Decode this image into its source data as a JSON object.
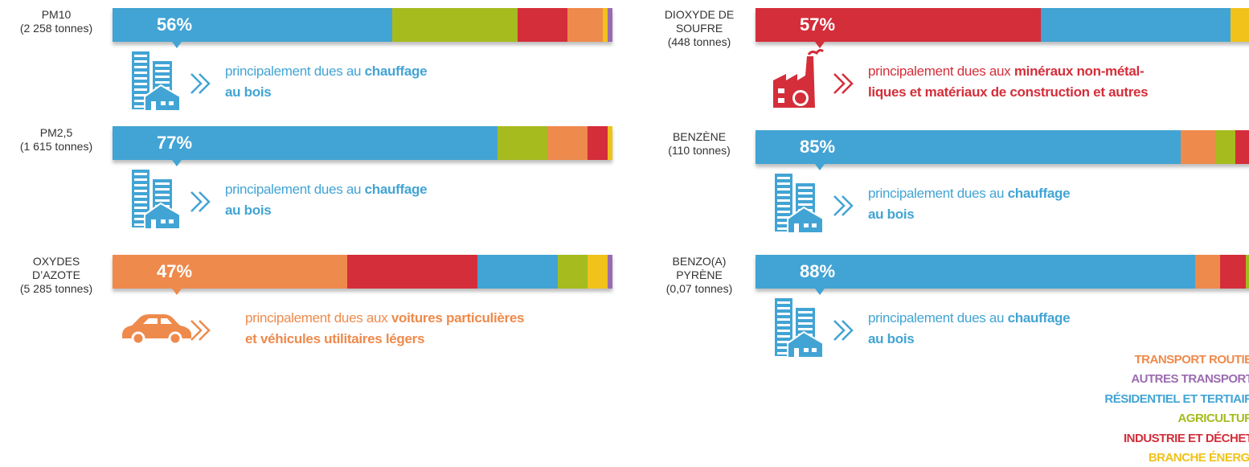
{
  "chart_data": [
    {
      "type": "stacked-bar",
      "title": [
        "PM10",
        "(2 258 tonnes)"
      ],
      "xlim": [
        0,
        100
      ],
      "icon": "building",
      "series": [
        {
          "name": "RÉSIDENTIEL ET TERTIAIRE",
          "color": "#42a4d4",
          "values": [
            56
          ],
          "value_labels": [
            "56%"
          ]
        },
        {
          "name": "AGRICULTURE",
          "color": "#a6bb1e",
          "values": [
            25
          ]
        },
        {
          "name": "INDUSTRIE ET DÉCHETS",
          "color": "#d42e3a",
          "values": [
            10
          ]
        },
        {
          "name": "TRANSPORT ROUTIER",
          "color": "#ee8a4c",
          "values": [
            7
          ]
        },
        {
          "name": "BRANCHE ÉNERGIE",
          "color": "#f0c21a",
          "values": [
            1
          ]
        },
        {
          "name": "AUTRES TRANSPORTS",
          "color": "#9b6bb0",
          "values": [
            1
          ]
        }
      ],
      "note": {
        "plain": "principalement dues au",
        "bold": [
          "chauffage",
          "au bois"
        ]
      }
    },
    {
      "type": "stacked-bar",
      "title": [
        "PM2,5",
        "(1 615 tonnes)"
      ],
      "xlim": [
        0,
        100
      ],
      "icon": "building",
      "series": [
        {
          "name": "RÉSIDENTIEL ET TERTIAIRE",
          "color": "#42a4d4",
          "values": [
            77
          ],
          "value_labels": [
            "77%"
          ]
        },
        {
          "name": "AGRICULTURE",
          "color": "#a6bb1e",
          "values": [
            10
          ]
        },
        {
          "name": "TRANSPORT ROUTIER",
          "color": "#ee8a4c",
          "values": [
            8
          ]
        },
        {
          "name": "INDUSTRIE ET DÉCHETS",
          "color": "#d42e3a",
          "values": [
            4
          ]
        },
        {
          "name": "BRANCHE ÉNERGIE",
          "color": "#f0c21a",
          "values": [
            1
          ]
        }
      ],
      "note": {
        "plain": "principalement dues au",
        "bold": [
          "chauffage",
          "au bois"
        ]
      }
    },
    {
      "type": "stacked-bar",
      "title": [
        "OXYDES",
        "D’AZOTE",
        "(5 285 tonnes)"
      ],
      "xlim": [
        0,
        100
      ],
      "icon": "car",
      "series": [
        {
          "name": "TRANSPORT ROUTIER",
          "color": "#ee8a4c",
          "values": [
            47
          ],
          "value_labels": [
            "47%"
          ]
        },
        {
          "name": "INDUSTRIE ET DÉCHETS",
          "color": "#d42e3a",
          "values": [
            26
          ]
        },
        {
          "name": "RÉSIDENTIEL ET TERTIAIRE",
          "color": "#42a4d4",
          "values": [
            16
          ]
        },
        {
          "name": "AGRICULTURE",
          "color": "#a6bb1e",
          "values": [
            6
          ]
        },
        {
          "name": "BRANCHE ÉNERGIE",
          "color": "#f0c21a",
          "values": [
            4
          ]
        },
        {
          "name": "AUTRES TRANSPORTS",
          "color": "#9b6bb0",
          "values": [
            1
          ]
        }
      ],
      "note": {
        "plain": "principalement dues aux",
        "bold": [
          "voitures particulières",
          "et véhicules utilitaires légers"
        ]
      }
    },
    {
      "type": "stacked-bar",
      "title": [
        "DIOXYDE DE",
        "SOUFRE",
        "(448 tonnes)"
      ],
      "xlim": [
        0,
        100
      ],
      "icon": "factory",
      "series": [
        {
          "name": "INDUSTRIE ET DÉCHETS",
          "color": "#d42e3a",
          "values": [
            57
          ],
          "value_labels": [
            "57%"
          ]
        },
        {
          "name": "RÉSIDENTIEL ET TERTIAIRE",
          "color": "#42a4d4",
          "values": [
            38
          ]
        },
        {
          "name": "BRANCHE ÉNERGIE",
          "color": "#f0c21a",
          "values": [
            5
          ]
        }
      ],
      "note": {
        "plain": "principalement dues aux",
        "bold": [
          "minéraux non-métal-",
          "liques et matériaux de construction et autres"
        ]
      }
    },
    {
      "type": "stacked-bar",
      "title": [
        "BENZÈNE",
        "(110 tonnes)"
      ],
      "xlim": [
        0,
        100
      ],
      "icon": "building",
      "series": [
        {
          "name": "RÉSIDENTIEL ET TERTIAIRE",
          "color": "#42a4d4",
          "values": [
            85
          ],
          "value_labels": [
            "85%"
          ]
        },
        {
          "name": "TRANSPORT ROUTIER",
          "color": "#ee8a4c",
          "values": [
            7
          ]
        },
        {
          "name": "AGRICULTURE",
          "color": "#a6bb1e",
          "values": [
            4
          ]
        },
        {
          "name": "INDUSTRIE ET DÉCHETS",
          "color": "#d42e3a",
          "values": [
            4
          ]
        }
      ],
      "note": {
        "plain": "principalement dues au",
        "bold": [
          "chauffage",
          "au bois"
        ]
      }
    },
    {
      "type": "stacked-bar",
      "title": [
        "BENZO(A)",
        "PYRÈNE",
        "(0,07 tonnes)"
      ],
      "xlim": [
        0,
        100
      ],
      "icon": "building",
      "series": [
        {
          "name": "RÉSIDENTIEL ET TERTIAIRE",
          "color": "#42a4d4",
          "values": [
            88
          ],
          "value_labels": [
            "88%"
          ]
        },
        {
          "name": "TRANSPORT ROUTIER",
          "color": "#ee8a4c",
          "values": [
            5
          ]
        },
        {
          "name": "INDUSTRIE ET DÉCHETS",
          "color": "#d42e3a",
          "values": [
            5
          ]
        },
        {
          "name": "AGRICULTURE",
          "color": "#a6bb1e",
          "values": [
            2
          ]
        }
      ],
      "note": {
        "plain": "principalement dues au",
        "bold": [
          "chauffage",
          "au bois"
        ]
      }
    }
  ],
  "legend": [
    {
      "name": "TRANSPORT ROUTIER",
      "color": "#ee8a4c"
    },
    {
      "name": "AUTRES TRANSPORTS",
      "color": "#9b6bb0"
    },
    {
      "name": "RÉSIDENTIEL ET TERTIAIRE",
      "color": "#42a4d4"
    },
    {
      "name": "AGRICULTURE",
      "color": "#a6bb1e"
    },
    {
      "name": "INDUSTRIE ET DÉCHETS",
      "color": "#d42e3a"
    },
    {
      "name": "BRANCHE ÉNERGIE",
      "color": "#f0c21a"
    }
  ]
}
